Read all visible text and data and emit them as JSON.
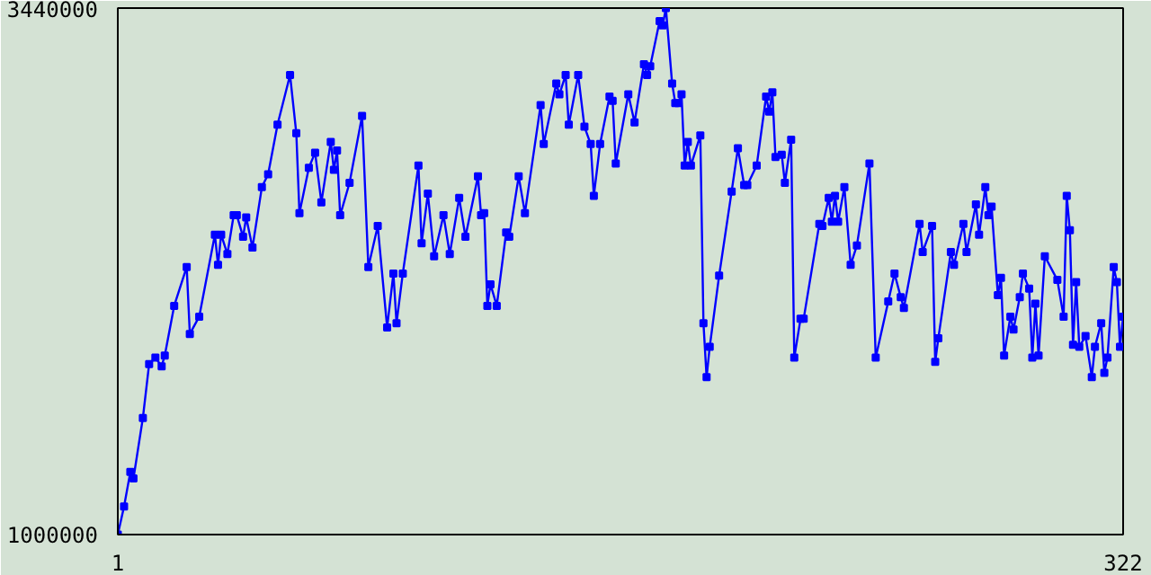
{
  "chart_data": {
    "type": "line",
    "marker": "square",
    "line_style": "solid",
    "xlim": [
      1,
      322
    ],
    "xticks": [
      1,
      322
    ],
    "ylim": [
      1000000,
      3440000
    ],
    "yticks": [
      1000000,
      3440000
    ],
    "series": [
      {
        "color": "#0000ff",
        "x": [
          1,
          3,
          5,
          6,
          9,
          11,
          13,
          15,
          16,
          19,
          23,
          24,
          27,
          32,
          33,
          34,
          36,
          38,
          39,
          41,
          42,
          44,
          47,
          49,
          52,
          56,
          58,
          59,
          62,
          64,
          66,
          69,
          70,
          71,
          72,
          75,
          79,
          81,
          84,
          87,
          89,
          90,
          92,
          97,
          98,
          100,
          102,
          105,
          107,
          110,
          112,
          116,
          117,
          118,
          119,
          120,
          122,
          125,
          126,
          129,
          131,
          136,
          137,
          141,
          142,
          144,
          145,
          148,
          150,
          152,
          153,
          155,
          158,
          159,
          160,
          164,
          166,
          169,
          170,
          171,
          174,
          175,
          176,
          178,
          179,
          180,
          181,
          182,
          183,
          184,
          187,
          188,
          189,
          190,
          193,
          197,
          199,
          201,
          202,
          205,
          208,
          209,
          210,
          211,
          213,
          214,
          216,
          217,
          219,
          220,
          225,
          226,
          228,
          229,
          230,
          231,
          233,
          235,
          237,
          241,
          243,
          247,
          249,
          251,
          252,
          257,
          258,
          261,
          262,
          263,
          267,
          268,
          271,
          272,
          275,
          276,
          278,
          279,
          280,
          282,
          283,
          284,
          286,
          287,
          289,
          290,
          292,
          293,
          294,
          295,
          297,
          301,
          303,
          304,
          305,
          306,
          307,
          308,
          310,
          312,
          313,
          315,
          316,
          317,
          319,
          320,
          321,
          322
        ],
        "values": [
          1000000,
          1130000,
          1290000,
          1260000,
          1540000,
          1790000,
          1820000,
          1780000,
          1830000,
          2060000,
          2240000,
          1930000,
          2010000,
          2390000,
          2250000,
          2390000,
          2300000,
          2480000,
          2480000,
          2380000,
          2470000,
          2330000,
          2610000,
          2670000,
          2900000,
          3130000,
          2860000,
          2490000,
          2700000,
          2770000,
          2540000,
          2820000,
          2690000,
          2780000,
          2480000,
          2630000,
          2940000,
          2240000,
          2430000,
          1960000,
          2210000,
          1980000,
          2210000,
          2710000,
          2350000,
          2580000,
          2290000,
          2480000,
          2300000,
          2560000,
          2380000,
          2660000,
          2480000,
          2490000,
          2060000,
          2160000,
          2060000,
          2400000,
          2380000,
          2660000,
          2490000,
          2990000,
          2810000,
          3090000,
          3040000,
          3130000,
          2900000,
          3130000,
          2890000,
          2810000,
          2570000,
          2810000,
          3030000,
          3010000,
          2720000,
          3040000,
          2910000,
          3180000,
          3130000,
          3170000,
          3380000,
          3360000,
          3440000,
          3090000,
          3000000,
          3000000,
          3040000,
          2710000,
          2820000,
          2710000,
          2850000,
          1980000,
          1730000,
          1870000,
          2200000,
          2590000,
          2790000,
          2620000,
          2620000,
          2710000,
          3030000,
          2960000,
          3050000,
          2750000,
          2760000,
          2630000,
          2830000,
          1820000,
          2000000,
          2000000,
          2440000,
          2430000,
          2560000,
          2450000,
          2570000,
          2450000,
          2610000,
          2250000,
          2340000,
          2720000,
          1820000,
          2080000,
          2210000,
          2100000,
          2050000,
          2440000,
          2310000,
          2430000,
          1800000,
          1910000,
          2310000,
          2250000,
          2440000,
          2310000,
          2530000,
          2390000,
          2610000,
          2480000,
          2520000,
          2110000,
          2190000,
          1830000,
          2010000,
          1950000,
          2100000,
          2210000,
          2140000,
          1820000,
          2070000,
          1830000,
          2290000,
          2180000,
          2010000,
          2570000,
          2410000,
          1880000,
          2170000,
          1870000,
          1920000,
          1730000,
          1870000,
          1980000,
          1750000,
          1820000,
          2240000,
          2170000,
          1870000,
          2010000
        ]
      }
    ]
  }
}
